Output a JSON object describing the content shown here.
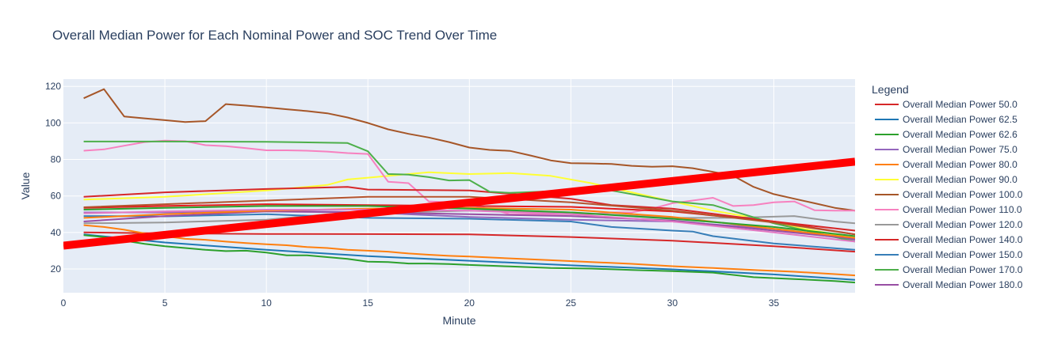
{
  "chart_data": {
    "type": "line",
    "title": "Overall Median Power for Each Nominal Power and SOC Trend Over Time",
    "xlabel": "Minute",
    "ylabel": "Value",
    "xlim": [
      0,
      39
    ],
    "ylim": [
      7,
      124
    ],
    "x_ticks": [
      0,
      5,
      10,
      15,
      20,
      25,
      30,
      35
    ],
    "y_ticks": [
      20,
      40,
      60,
      80,
      100,
      120
    ],
    "legend_title": "Legend",
    "legend_position": "right",
    "background": "#e5ecf6",
    "series": [
      {
        "name": "Overall Median Power 50.0",
        "color": "#d62728",
        "width": 2,
        "x": [
          1,
          5,
          10,
          15,
          20,
          25,
          30,
          35,
          39
        ],
        "y": [
          40,
          39.5,
          39.2,
          39.1,
          39,
          37.5,
          35.5,
          32.5,
          29.5
        ]
      },
      {
        "name": "Overall Median Power 62.5",
        "color": "#1f77b4",
        "width": 2,
        "x": [
          1,
          5,
          10,
          15,
          20,
          25,
          30,
          35,
          39
        ],
        "y": [
          39,
          34.5,
          30.5,
          27,
          24.5,
          22,
          19.8,
          17,
          14
        ]
      },
      {
        "name": "Overall Median Power 62.6",
        "color": "#2ca02c",
        "width": 2,
        "x": [
          1,
          2,
          3,
          4,
          5,
          6,
          7,
          8,
          9,
          10,
          11,
          12,
          13,
          14,
          15,
          16,
          17,
          18,
          19,
          20,
          22,
          24,
          26,
          28,
          30,
          32,
          34,
          36,
          38,
          39
        ],
        "y": [
          38.5,
          37.5,
          35.5,
          33.8,
          32.5,
          31.5,
          30.5,
          29.8,
          30,
          29,
          27.5,
          27.5,
          26.5,
          25.5,
          24,
          23.8,
          23,
          23,
          22.7,
          22.2,
          21.4,
          20.5,
          20.2,
          19.5,
          18.8,
          18,
          15.5,
          14.5,
          13.4,
          12.6
        ]
      },
      {
        "name": "Overall Median Power 75.0",
        "color": "#9467bd",
        "width": 2,
        "x": [
          1,
          5,
          10,
          15,
          20,
          25,
          30,
          35,
          39
        ],
        "y": [
          51,
          51,
          52,
          51,
          48.5,
          47,
          46,
          42,
          36
        ]
      },
      {
        "name": "Overall Median Power 80.0",
        "color": "#ff7f0e",
        "width": 2,
        "x": [
          1,
          2,
          3,
          4,
          5,
          6,
          7,
          8,
          9,
          10,
          11,
          12,
          13,
          14,
          15,
          16,
          17,
          18,
          19,
          20,
          22,
          24,
          26,
          28,
          30,
          32,
          34,
          36,
          38,
          39
        ],
        "y": [
          44,
          43,
          41.5,
          39.5,
          38,
          36.5,
          36,
          35,
          34.2,
          33.5,
          33,
          32,
          31.5,
          30.5,
          30,
          29.5,
          28.5,
          27.8,
          27.2,
          26.8,
          25.8,
          24.8,
          23.8,
          22.8,
          21.5,
          20.5,
          19.5,
          18.5,
          17.2,
          16.5
        ]
      },
      {
        "name": "Overall Median Power 90.0",
        "color": "#ffff33",
        "width": 2,
        "x": [
          1,
          5,
          10,
          12,
          13,
          14,
          15,
          17,
          18,
          20,
          22,
          24,
          26,
          28,
          30,
          32,
          34,
          36,
          38,
          39
        ],
        "y": [
          58,
          59.5,
          63,
          65,
          66,
          69,
          70,
          72,
          73,
          72,
          72.5,
          71,
          67,
          62,
          57,
          52,
          48,
          43,
          39,
          38
        ]
      },
      {
        "name": "Overall Median Power 100.0",
        "color": "#a65628",
        "width": 2,
        "x": [
          1,
          2,
          3,
          4,
          5,
          6,
          7,
          8,
          9,
          10,
          11,
          12,
          13,
          14,
          15,
          16,
          17,
          18,
          19,
          20,
          21,
          22,
          23,
          24,
          25,
          26,
          27,
          28,
          29,
          30,
          31,
          32,
          33,
          34,
          35,
          36,
          37,
          38,
          39
        ],
        "y": [
          113.5,
          118.5,
          103.5,
          102.5,
          101.5,
          100.5,
          101,
          110.3,
          109.5,
          108.5,
          107.5,
          106.5,
          105.3,
          103,
          100,
          96.5,
          94,
          92,
          89.5,
          86.5,
          85.2,
          84.7,
          82.2,
          79.5,
          78,
          77.8,
          77.5,
          76.5,
          76,
          76.3,
          75.2,
          73.2,
          71,
          65,
          61,
          58.5,
          56,
          53.5,
          52
        ]
      },
      {
        "name": "Overall Median Power 110.0",
        "color": "#f781bf",
        "width": 2,
        "x": [
          1,
          2,
          3,
          4,
          5,
          6,
          7,
          8,
          9,
          10,
          11,
          12,
          13,
          14,
          15,
          16,
          17,
          18,
          19,
          20,
          21,
          22,
          23,
          24,
          25,
          26,
          27,
          28,
          29,
          30,
          31,
          32,
          33,
          34,
          35,
          36,
          37,
          38,
          39
        ],
        "y": [
          84.8,
          85.5,
          87.5,
          89.5,
          90.3,
          90,
          87.8,
          87.3,
          86.2,
          85,
          85,
          84.8,
          84.3,
          83.5,
          83,
          67.8,
          67,
          57,
          56.5,
          55,
          53,
          50,
          50,
          50,
          50,
          50,
          51,
          51,
          53,
          56,
          57.5,
          59,
          54.5,
          55,
          56.5,
          57,
          52.2,
          52,
          52
        ]
      },
      {
        "name": "Overall Median Power 120.0",
        "color": "#999999",
        "width": 2,
        "x": [
          1,
          5,
          10,
          12,
          13,
          15,
          20,
          25,
          30,
          33,
          36,
          38,
          39
        ],
        "y": [
          45,
          45.5,
          47,
          49,
          50,
          50.5,
          52,
          51,
          48,
          48,
          49,
          46,
          45
        ]
      },
      {
        "name": "Overall Median Power 140.0",
        "color": "#d62728",
        "width": 2,
        "x": [
          1,
          5,
          10,
          14,
          15,
          20,
          25,
          27,
          30,
          35,
          39
        ],
        "y": [
          59.5,
          62,
          63.8,
          65,
          63.5,
          63,
          58.5,
          55,
          53,
          46,
          41
        ]
      },
      {
        "name": "Overall Median Power 150.0",
        "color": "#377eb8",
        "width": 2,
        "x": [
          1,
          5,
          10,
          15,
          20,
          25,
          27,
          30,
          31,
          32,
          35,
          39
        ],
        "y": [
          49,
          48.8,
          50,
          48,
          47.5,
          46,
          43,
          41,
          40.5,
          38,
          34,
          30.5
        ]
      },
      {
        "name": "Overall Median Power 170.0",
        "color": "#4daf4a",
        "width": 2,
        "x": [
          1,
          5,
          10,
          14,
          15,
          16,
          17,
          18,
          19,
          20,
          21,
          22,
          24,
          25,
          27,
          30,
          32,
          35,
          39
        ],
        "y": [
          89.8,
          89.8,
          89.7,
          89,
          84.5,
          72,
          71.7,
          70.3,
          68.5,
          68.7,
          62.3,
          61.7,
          62.5,
          62.8,
          63,
          57,
          55,
          45,
          35
        ]
      },
      {
        "name": "Overall Median Power 180.0",
        "color": "#984ea3",
        "width": 2,
        "x": [
          1,
          5,
          10,
          15,
          20,
          25,
          30,
          35,
          39
        ],
        "y": [
          46,
          49,
          51.5,
          51,
          50,
          49,
          46.5,
          41,
          36.5
        ]
      },
      {
        "name": "",
        "color": "#e41a1c",
        "width": 2,
        "x": [
          1,
          5,
          10,
          15,
          20,
          25,
          30,
          35,
          39
        ],
        "y": [
          53.5,
          54.5,
          55.5,
          55,
          54.5,
          54,
          51.5,
          46,
          39
        ]
      },
      {
        "name": "",
        "color": "#ff7f0e",
        "width": 2,
        "x": [
          1,
          5,
          10,
          15,
          20,
          25,
          30,
          35,
          39
        ],
        "y": [
          48,
          50,
          52,
          53,
          53.5,
          52.5,
          48.5,
          42,
          37
        ]
      },
      {
        "name": "",
        "color": "#b5532d",
        "width": 2,
        "x": [
          1,
          5,
          10,
          15,
          20,
          25,
          30,
          35,
          39
        ],
        "y": [
          53.8,
          55.5,
          57.5,
          59.5,
          59.5,
          56.5,
          52,
          45.5,
          39
        ]
      },
      {
        "name": "",
        "color": "#2ca02c",
        "width": 2,
        "x": [
          1,
          5,
          10,
          15,
          20,
          25,
          30,
          35,
          39
        ],
        "y": [
          52.5,
          53.5,
          54.5,
          54.5,
          53,
          51,
          47.5,
          43,
          38
        ]
      },
      {
        "name": "",
        "color": "#e377c2",
        "width": 2,
        "x": [
          1,
          5,
          10,
          15,
          20,
          25,
          30,
          35,
          39
        ],
        "y": [
          50.5,
          51.5,
          52.5,
          52.5,
          52,
          50,
          46,
          40,
          35
        ]
      },
      {
        "name": "",
        "color": "#ff0000",
        "width": 10,
        "x": [
          0,
          39
        ],
        "y": [
          32.8,
          78.8
        ]
      }
    ]
  }
}
